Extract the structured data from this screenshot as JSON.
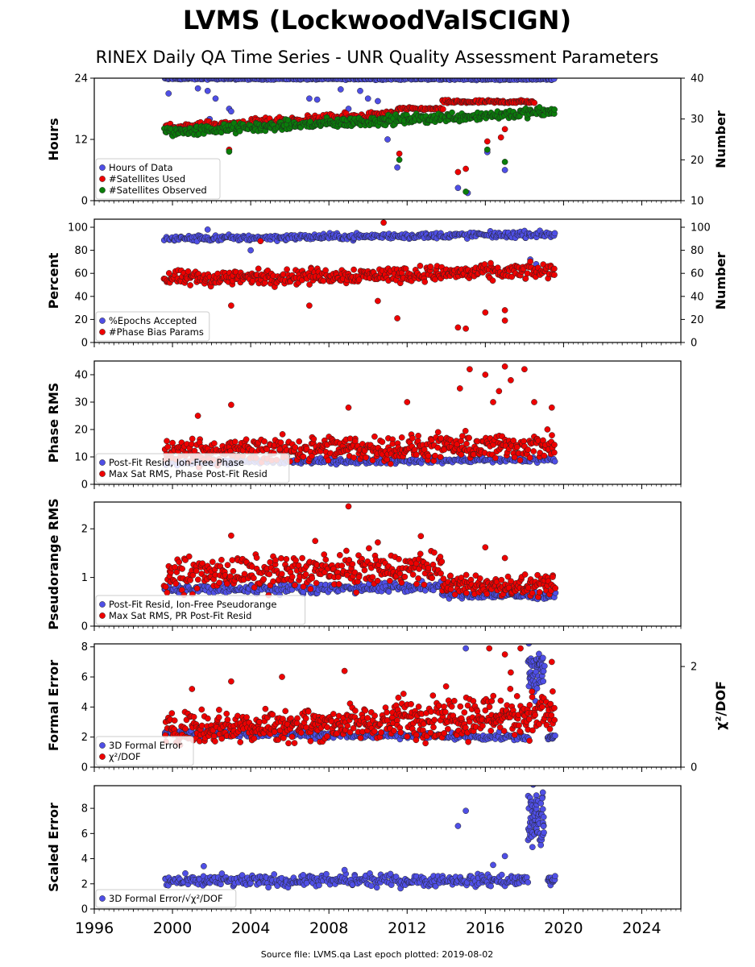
{
  "title": "LVMS (LockwoodValSCIGN)",
  "subtitle": "RINEX Daily QA Time Series - UNR Quality Assessment Parameters",
  "footer": "Source file: LVMS.qa Last epoch plotted: 2019-08-02",
  "colors": {
    "blue": "#4f4fe6",
    "red": "#ee0000",
    "green": "#0a7d0a",
    "edge": "#222222"
  },
  "x_axis": {
    "range": [
      1996,
      2026
    ],
    "ticks": [
      "1996",
      "2000",
      "2004",
      "2008",
      "2012",
      "2016",
      "2020",
      "2024"
    ]
  },
  "chart_data": [
    {
      "type": "scatter",
      "ylabel": "Hours",
      "ylabel_right": "Number",
      "ylim": [
        0,
        24
      ],
      "yticks": [
        "0",
        "12",
        "24"
      ],
      "ylim_right": [
        10,
        40
      ],
      "yticks_right": [
        "10",
        "20",
        "30",
        "40"
      ],
      "legend": [
        "Hours of Data",
        "#Satellites Used",
        "#Satellites Observed"
      ],
      "series": [
        {
          "name": "Hours of Data",
          "color": "blue",
          "axis": "left",
          "segments": [
            {
              "x0": 1999.6,
              "x1": 2019.55,
              "y0": 23.9,
              "y1": 23.8,
              "spread": 0.25,
              "n": 360
            }
          ],
          "outliers": [
            [
              1999.8,
              21
            ],
            [
              2001.3,
              22
            ],
            [
              2001.8,
              21.5
            ],
            [
              2002.2,
              20
            ],
            [
              2002.9,
              18
            ],
            [
              2003.0,
              17.5
            ],
            [
              2001.9,
              16
            ],
            [
              2007.0,
              20
            ],
            [
              2007.4,
              19.8
            ],
            [
              2008.6,
              21.8
            ],
            [
              2009.0,
              18
            ],
            [
              2009.6,
              21.5
            ],
            [
              2010.0,
              20
            ],
            [
              2010.5,
              19.5
            ],
            [
              2011.0,
              12
            ],
            [
              2011.5,
              6.5
            ],
            [
              2014.6,
              2.5
            ],
            [
              2015.1,
              1.5
            ],
            [
              2016.1,
              9.5
            ],
            [
              2017.0,
              6
            ]
          ]
        },
        {
          "name": "#Satellites Used",
          "color": "red",
          "axis": "right",
          "segments": [
            {
              "x0": 1999.6,
              "x1": 2011.5,
              "y0": 27.8,
              "y1": 31.2,
              "spread": 1.4,
              "n": 240
            },
            {
              "x0": 2011.5,
              "x1": 2013.8,
              "y0": 32.5,
              "y1": 32.5,
              "spread": 0.5,
              "n": 40
            },
            {
              "x0": 2013.8,
              "x1": 2018.5,
              "y0": 34.2,
              "y1": 34.2,
              "spread": 0.6,
              "n": 100
            }
          ],
          "outliers": [
            [
              2002.9,
              22.5
            ],
            [
              2011.6,
              21.5
            ],
            [
              2014.6,
              17
            ],
            [
              2015.0,
              17.8
            ],
            [
              2016.1,
              24.5
            ],
            [
              2016.8,
              25.5
            ],
            [
              2017.0,
              27.5
            ]
          ]
        },
        {
          "name": "#Satellites Observed",
          "color": "green",
          "axis": "right",
          "segments": [
            {
              "x0": 1999.6,
              "x1": 2019.55,
              "y0": 26.8,
              "y1": 31.8,
              "spread": 1.8,
              "n": 420
            }
          ],
          "outliers": [
            [
              2002.9,
              22
            ],
            [
              2011.6,
              20
            ],
            [
              2015.0,
              12.2
            ],
            [
              2016.1,
              22.5
            ],
            [
              2017.0,
              19.5
            ]
          ]
        }
      ]
    },
    {
      "type": "scatter",
      "ylabel": "Percent",
      "ylabel_right": "Number",
      "ylim": [
        0,
        107
      ],
      "yticks": [
        "0",
        "20",
        "40",
        "60",
        "80",
        "100"
      ],
      "ylim_right": [
        0,
        107
      ],
      "yticks_right": [
        "0",
        "20",
        "40",
        "60",
        "80",
        "100"
      ],
      "legend": [
        "%Epochs Accepted",
        "#Phase Bias Params"
      ],
      "series": [
        {
          "name": "%Epochs Accepted",
          "color": "blue",
          "axis": "left",
          "segments": [
            {
              "x0": 1999.6,
              "x1": 2019.55,
              "y0": 90,
              "y1": 94,
              "spread": 4,
              "n": 360
            }
          ],
          "outliers": [
            [
              2001.8,
              98
            ],
            [
              2004.0,
              80
            ],
            [
              2018.3,
              72
            ],
            [
              2018.6,
              68
            ]
          ]
        },
        {
          "name": "#Phase Bias Params",
          "color": "red",
          "axis": "right",
          "segments": [
            {
              "x0": 1999.6,
              "x1": 2019.55,
              "y0": 55,
              "y1": 62,
              "spread": 10,
              "n": 420
            }
          ],
          "outliers": [
            [
              2010.8,
              104
            ],
            [
              2004.5,
              88
            ],
            [
              2007.0,
              32
            ],
            [
              2011.5,
              21
            ],
            [
              2014.6,
              13
            ],
            [
              2015.0,
              12
            ],
            [
              2016.0,
              26
            ],
            [
              2017.0,
              19
            ],
            [
              2017.0,
              28
            ],
            [
              2003.0,
              32
            ],
            [
              2010.5,
              36
            ]
          ]
        }
      ]
    },
    {
      "type": "scatter",
      "ylabel": "Phase RMS",
      "ylim": [
        0,
        45
      ],
      "yticks": [
        "0",
        "10",
        "20",
        "30",
        "40"
      ],
      "legend": [
        "Post-Fit Resid, Ion-Free Phase",
        "Max Sat RMS, Phase Post-Fit Resid"
      ],
      "series": [
        {
          "name": "Post-Fit Resid, Ion-Free Phase",
          "color": "blue",
          "axis": "left",
          "segments": [
            {
              "x0": 1999.6,
              "x1": 2019.55,
              "y0": 8,
              "y1": 9,
              "spread": 1.5,
              "n": 300
            }
          ],
          "outliers": []
        },
        {
          "name": "Max Sat RMS, Phase Post-Fit Resid",
          "color": "red",
          "axis": "left",
          "segments": [
            {
              "x0": 1999.6,
              "x1": 2019.55,
              "y0": 12,
              "y1": 14,
              "spread": 7,
              "n": 460
            }
          ],
          "outliers": [
            [
              2003.0,
              29
            ],
            [
              2009.0,
              28
            ],
            [
              2012.0,
              30
            ],
            [
              2014.7,
              35
            ],
            [
              2015.2,
              42
            ],
            [
              2016.0,
              40
            ],
            [
              2016.7,
              34
            ],
            [
              2017.0,
              43
            ],
            [
              2017.3,
              38
            ],
            [
              2018.0,
              42
            ],
            [
              2018.5,
              30
            ],
            [
              2019.4,
              28
            ],
            [
              2016.4,
              30
            ],
            [
              2001.3,
              25
            ]
          ]
        }
      ]
    },
    {
      "type": "scatter",
      "ylabel": "Pseudorange RMS",
      "ylim": [
        0,
        2.55
      ],
      "yticks": [
        "0",
        "1",
        "2"
      ],
      "legend": [
        "Post-Fit Resid, Ion-Free Pseudorange",
        "Max Sat RMS, PR Post-Fit Resid"
      ],
      "series": [
        {
          "name": "Post-Fit Resid, Ion-Free Pseudorange",
          "color": "blue",
          "axis": "left",
          "segments": [
            {
              "x0": 1999.6,
              "x1": 2013.8,
              "y0": 0.75,
              "y1": 0.8,
              "spread": 0.15,
              "n": 240
            },
            {
              "x0": 2013.8,
              "x1": 2019.55,
              "y0": 0.65,
              "y1": 0.62,
              "spread": 0.1,
              "n": 100
            }
          ],
          "outliers": []
        },
        {
          "name": "Max Sat RMS, PR Post-Fit Resid",
          "color": "red",
          "axis": "left",
          "segments": [
            {
              "x0": 1999.6,
              "x1": 2013.8,
              "y0": 1.05,
              "y1": 1.2,
              "spread": 0.5,
              "n": 320
            },
            {
              "x0": 2013.8,
              "x1": 2019.55,
              "y0": 0.85,
              "y1": 0.8,
              "spread": 0.3,
              "n": 140
            }
          ],
          "outliers": [
            [
              2009.0,
              2.46
            ],
            [
              2003.0,
              1.86
            ],
            [
              2016.0,
              1.62
            ],
            [
              2017.0,
              1.4
            ],
            [
              2007.3,
              1.75
            ],
            [
              2010.5,
              1.72
            ],
            [
              2012.7,
              1.85
            ]
          ]
        }
      ]
    },
    {
      "type": "scatter",
      "ylabel": "Formal Error",
      "ylabel_right": "χ²/DOF",
      "ylim": [
        0,
        8.2
      ],
      "yticks": [
        "0",
        "2",
        "4",
        "6",
        "8"
      ],
      "ylim_right": [
        0,
        2.45
      ],
      "yticks_right": [
        "0",
        "2"
      ],
      "legend": [
        "3D Formal Error",
        "χ²/DOF"
      ],
      "series": [
        {
          "name": "3D Formal Error",
          "color": "blue",
          "axis": "left",
          "segments": [
            {
              "x0": 1999.6,
              "x1": 2018.2,
              "y0": 2.3,
              "y1": 2.0,
              "spread": 0.35,
              "n": 320
            },
            {
              "x0": 2018.2,
              "x1": 2019.0,
              "y0": 6.2,
              "y1": 6.2,
              "spread": 2.6,
              "n": 60
            },
            {
              "x0": 2019.2,
              "x1": 2019.55,
              "y0": 2.0,
              "y1": 2.0,
              "spread": 0.2,
              "n": 15
            }
          ],
          "outliers": [
            [
              2015.0,
              7.9
            ],
            [
              2014.6,
              2.4
            ]
          ]
        },
        {
          "name": "χ²/DOF",
          "color": "red",
          "axis": "left",
          "segments": [
            {
              "x0": 1999.6,
              "x1": 2011.5,
              "y0": 2.6,
              "y1": 3.0,
              "spread": 1.6,
              "n": 320
            },
            {
              "x0": 2011.5,
              "x1": 2019.55,
              "y0": 3.3,
              "y1": 3.6,
              "spread": 2.2,
              "n": 240
            }
          ],
          "outliers": [
            [
              2003.0,
              5.7
            ],
            [
              2005.6,
              6.0
            ],
            [
              2008.8,
              6.4
            ],
            [
              2016.2,
              7.9
            ],
            [
              2017.0,
              7.5
            ],
            [
              2017.8,
              7.9
            ],
            [
              2017.3,
              6.3
            ],
            [
              2001.0,
              5.2
            ],
            [
              2019.4,
              7.0
            ]
          ]
        }
      ]
    },
    {
      "type": "scatter",
      "ylabel": "Scaled Error",
      "ylim": [
        0,
        9.8
      ],
      "yticks": [
        "0",
        "2",
        "4",
        "6",
        "8"
      ],
      "legend": [
        "3D Formal Error/√χ²/DOF"
      ],
      "series": [
        {
          "name": "3D Formal Error/√χ²/DOF",
          "color": "blue",
          "axis": "left",
          "segments": [
            {
              "x0": 1999.6,
              "x1": 2018.2,
              "y0": 2.2,
              "y1": 2.3,
              "spread": 0.7,
              "n": 360
            },
            {
              "x0": 2018.2,
              "x1": 2019.0,
              "y0": 7.0,
              "y1": 7.0,
              "spread": 3.6,
              "n": 70
            },
            {
              "x0": 2019.2,
              "x1": 2019.55,
              "y0": 2.3,
              "y1": 2.3,
              "spread": 0.6,
              "n": 15
            }
          ],
          "outliers": [
            [
              2014.6,
              6.6
            ],
            [
              2015.0,
              7.8
            ],
            [
              2017.0,
              4.2
            ],
            [
              2008.8,
              3.1
            ],
            [
              2001.6,
              3.4
            ],
            [
              2016.4,
              3.5
            ]
          ]
        }
      ]
    }
  ]
}
